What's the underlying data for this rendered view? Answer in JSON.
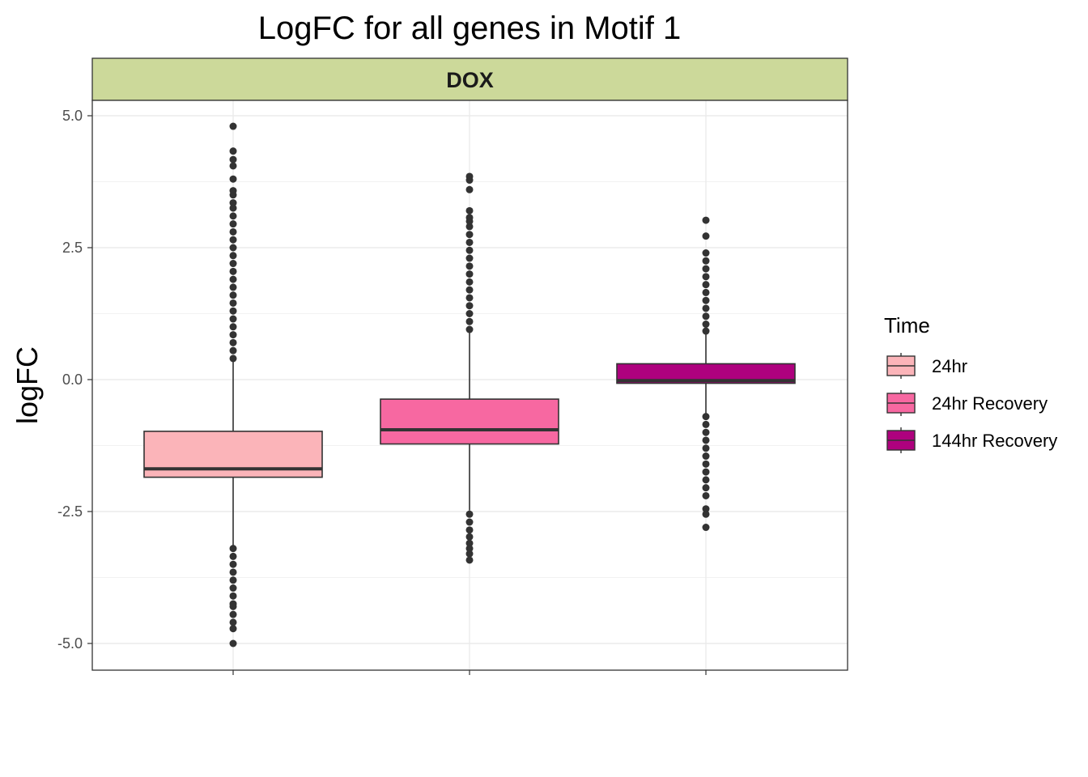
{
  "chart_data": {
    "type": "boxplot",
    "title": "LogFC for all genes in Motif 1",
    "ylabel": "logFC",
    "xlabel": "",
    "facet": "DOX",
    "ylim": [
      -5.5,
      5.3
    ],
    "yticks": [
      5.0,
      2.5,
      0.0,
      -2.5,
      -5.0
    ],
    "ytick_labels": [
      "5.0",
      "2.5",
      "0.0",
      "-2.5",
      "-5.0"
    ],
    "grid": true,
    "legend": {
      "title": "Time",
      "placement": "right",
      "entries": [
        "24hr",
        "24hr Recovery",
        "144hr Recovery"
      ]
    },
    "series": [
      {
        "name": "24hr",
        "color": "#FBB4B9",
        "q1": -1.85,
        "median": -1.69,
        "q3": -0.98,
        "whisker_low": -3.15,
        "whisker_high": 0.37,
        "outliers_high": [
          0.4,
          0.55,
          0.7,
          0.85,
          1.0,
          1.15,
          1.3,
          1.45,
          1.6,
          1.75,
          1.9,
          2.05,
          2.2,
          2.35,
          2.5,
          2.65,
          2.8,
          2.95,
          3.1,
          3.25,
          3.35,
          3.5,
          3.58,
          3.8,
          4.05,
          4.17,
          4.33,
          4.8
        ],
        "outliers_low": [
          -3.2,
          -3.35,
          -3.5,
          -3.65,
          -3.8,
          -3.95,
          -4.1,
          -4.25,
          -4.3,
          -4.45,
          -4.6,
          -4.72,
          -5.0
        ]
      },
      {
        "name": "24hr Recovery",
        "color": "#F768A1",
        "q1": -1.22,
        "median": -0.95,
        "q3": -0.37,
        "whisker_low": -2.48,
        "whisker_high": 0.9,
        "outliers_high": [
          0.95,
          1.1,
          1.25,
          1.4,
          1.55,
          1.7,
          1.85,
          2.0,
          2.15,
          2.3,
          2.45,
          2.6,
          2.75,
          2.9,
          3.0,
          3.07,
          3.2,
          3.6,
          3.78,
          3.85
        ],
        "outliers_low": [
          -2.55,
          -2.7,
          -2.85,
          -2.98,
          -3.1,
          -3.2,
          -3.3,
          -3.42
        ]
      },
      {
        "name": "144hr Recovery",
        "color": "#AE017E",
        "q1": -0.07,
        "median": -0.02,
        "q3": 0.3,
        "whisker_low": -0.65,
        "whisker_high": 0.88,
        "outliers_high": [
          0.92,
          1.05,
          1.2,
          1.35,
          1.5,
          1.65,
          1.8,
          1.95,
          2.1,
          2.25,
          2.4,
          2.72,
          3.02
        ],
        "outliers_low": [
          -0.7,
          -0.85,
          -1.0,
          -1.15,
          -1.3,
          -1.45,
          -1.6,
          -1.75,
          -1.9,
          -2.05,
          -2.2,
          -2.45,
          -2.55,
          -2.8
        ]
      }
    ]
  }
}
